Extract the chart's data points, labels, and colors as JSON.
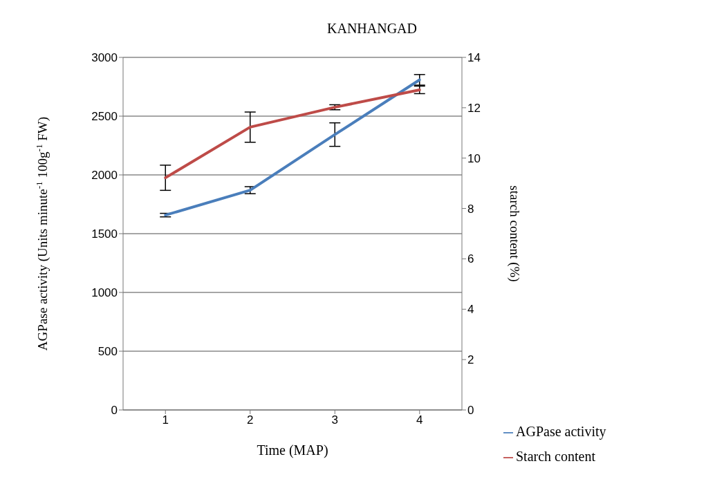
{
  "chart_data": {
    "type": "line",
    "title": "KANHANGAD",
    "xlabel": "Time (MAP)",
    "ylabel": "AGPase activity  (Units minute$^{-1}$ 100g$^{-1}$ FW)",
    "y2label": "starch content (%)",
    "categories": [
      "1",
      "2",
      "3",
      "4"
    ],
    "series": [
      {
        "name": "AGPase activity",
        "color": "#4a7ebb",
        "values": [
          1658,
          1870,
          2343,
          2809
        ],
        "errors": [
          15,
          30,
          100,
          45
        ]
      },
      {
        "name": "Starch content",
        "color": "#be4b48",
        "axis": "y2",
        "values": [
          9.22,
          11.23,
          12.02,
          12.71
        ],
        "errors": [
          0.5,
          0.6,
          0.1,
          0.15
        ]
      }
    ],
    "ylim": [
      0,
      3000
    ],
    "yticks": [
      0,
      500,
      1000,
      1500,
      2000,
      2500,
      3000
    ],
    "y2lim": [
      0,
      14
    ],
    "y2ticks": [
      0,
      2,
      4,
      6,
      8,
      10,
      12,
      14
    ],
    "grid": "y",
    "legend": "bottom right",
    "marker": "none",
    "line_style": "solid"
  }
}
